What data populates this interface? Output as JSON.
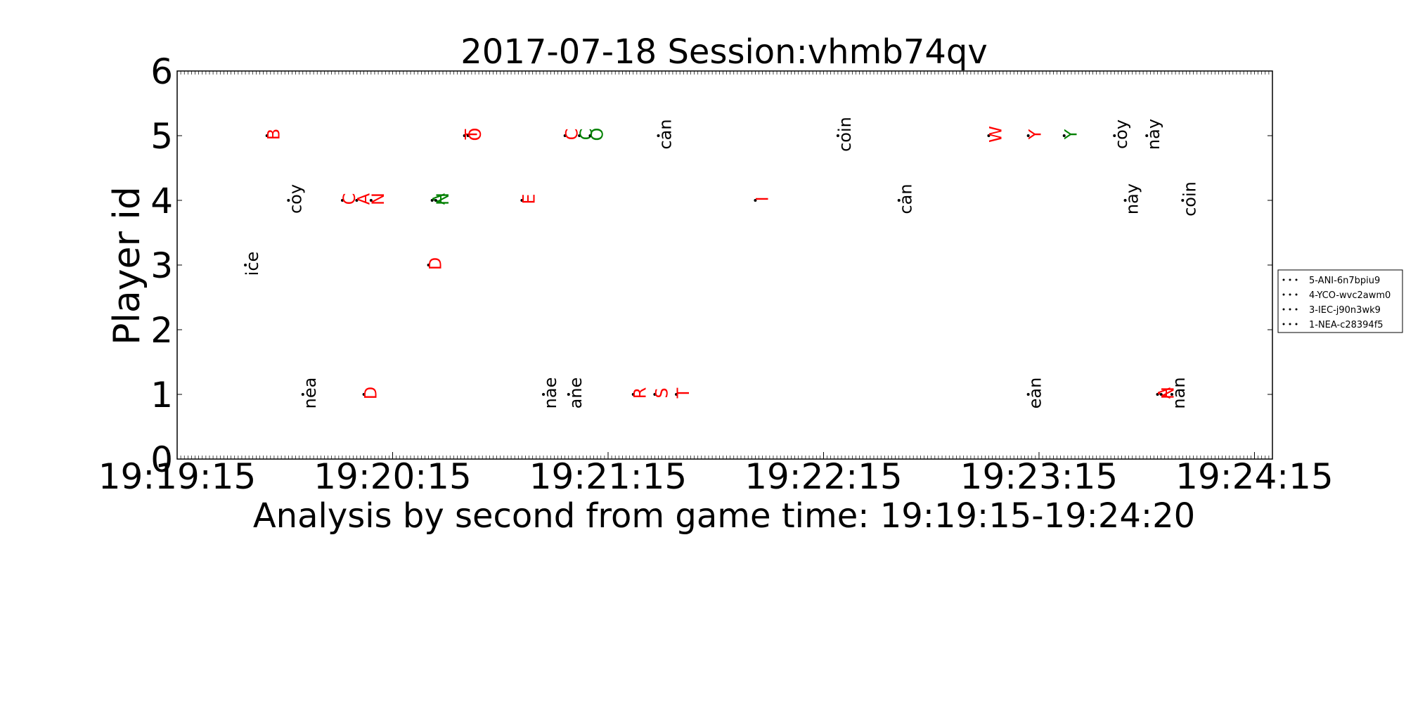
{
  "chart_data": {
    "type": "scatter",
    "title": "2017-07-18 Session:vhmb74qv",
    "xlabel": "Analysis by second from game time: 19:19:15-19:24:20",
    "ylabel": "Player id",
    "x_ticks": [
      "19:19:15",
      "19:20:15",
      "19:21:15",
      "19:22:15",
      "19:23:15",
      "19:24:15"
    ],
    "xlim_seconds": [
      0,
      305
    ],
    "ylim": [
      0,
      6
    ],
    "y_ticks": [
      0,
      1,
      2,
      3,
      4,
      5,
      6
    ],
    "grid": false,
    "legend_position": "right",
    "legend": [
      "5-ANI-6n7bpiu9",
      "4-YCO-wvc2awm0",
      "3-IEC-j90n3wk9",
      "1-NEA-c28394f5"
    ],
    "colors": {
      "black": "#000000",
      "red": "#ff0000",
      "green": "#008000"
    },
    "points": [
      {
        "t": 25,
        "y": 5,
        "label": "B",
        "color": "red"
      },
      {
        "t": 80,
        "y": 5,
        "label": "T",
        "color": "red"
      },
      {
        "t": 81,
        "y": 5,
        "label": "O",
        "color": "red"
      },
      {
        "t": 108,
        "y": 5,
        "label": "C",
        "color": "red"
      },
      {
        "t": 112,
        "y": 5,
        "label": "C",
        "color": "green"
      },
      {
        "t": 115,
        "y": 5,
        "label": "O",
        "color": "green"
      },
      {
        "t": 134,
        "y": 5,
        "label": "can",
        "color": "black"
      },
      {
        "t": 184,
        "y": 5,
        "label": "coin",
        "color": "black"
      },
      {
        "t": 226,
        "y": 5,
        "label": "W",
        "color": "red"
      },
      {
        "t": 237,
        "y": 5,
        "label": "Y",
        "color": "red"
      },
      {
        "t": 247,
        "y": 5,
        "label": "Y",
        "color": "green"
      },
      {
        "t": 261,
        "y": 5,
        "label": "coy",
        "color": "black"
      },
      {
        "t": 270,
        "y": 5,
        "label": "nay",
        "color": "black"
      },
      {
        "t": 31,
        "y": 4,
        "label": "coy",
        "color": "black"
      },
      {
        "t": 46,
        "y": 4,
        "label": "C",
        "color": "red"
      },
      {
        "t": 50,
        "y": 4,
        "label": "A",
        "color": "red"
      },
      {
        "t": 54,
        "y": 4,
        "label": "N",
        "color": "red"
      },
      {
        "t": 71,
        "y": 4,
        "label": "A",
        "color": "green"
      },
      {
        "t": 72,
        "y": 4,
        "label": "N",
        "color": "green"
      },
      {
        "t": 96,
        "y": 4,
        "label": "E",
        "color": "red"
      },
      {
        "t": 161,
        "y": 4,
        "label": "I",
        "color": "red"
      },
      {
        "t": 201,
        "y": 4,
        "label": "can",
        "color": "black"
      },
      {
        "t": 264,
        "y": 4,
        "label": "nay",
        "color": "black"
      },
      {
        "t": 280,
        "y": 4,
        "label": "coin",
        "color": "black"
      },
      {
        "t": 19,
        "y": 3,
        "label": "ice",
        "color": "black"
      },
      {
        "t": 70,
        "y": 3,
        "label": "D",
        "color": "red"
      },
      {
        "t": 35,
        "y": 1,
        "label": "nea",
        "color": "black"
      },
      {
        "t": 52,
        "y": 1,
        "label": "D",
        "color": "red"
      },
      {
        "t": 102,
        "y": 1,
        "label": "nae",
        "color": "black"
      },
      {
        "t": 109,
        "y": 1,
        "label": "ane",
        "color": "black"
      },
      {
        "t": 127,
        "y": 1,
        "label": "R",
        "color": "red"
      },
      {
        "t": 133,
        "y": 1,
        "label": "S",
        "color": "red"
      },
      {
        "t": 139,
        "y": 1,
        "label": "T",
        "color": "red"
      },
      {
        "t": 237,
        "y": 1,
        "label": "ean",
        "color": "black"
      },
      {
        "t": 273,
        "y": 1,
        "label": "A",
        "color": "red"
      },
      {
        "t": 274,
        "y": 1,
        "label": "N",
        "color": "red"
      },
      {
        "t": 277,
        "y": 1,
        "label": "nan",
        "color": "black"
      }
    ]
  }
}
